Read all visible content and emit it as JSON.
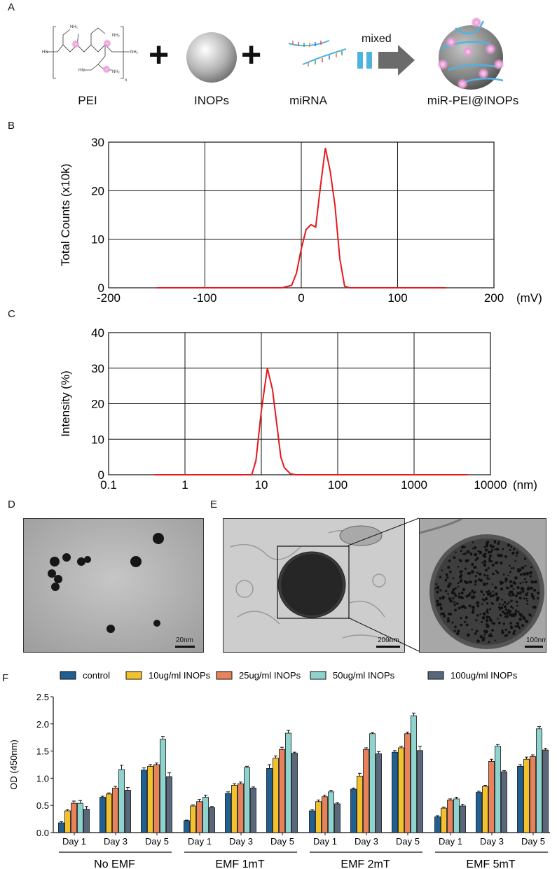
{
  "panel_labels": [
    "A",
    "B",
    "C",
    "D",
    "E",
    "F"
  ],
  "schematic": {
    "labels": [
      "PEI",
      "INOPs",
      "miRNA",
      "miR-PEI@INOPs"
    ],
    "arrow_text": "mixed",
    "plus": "+",
    "colors": {
      "bead": "#e59bd5",
      "strand": "#4fb3e0",
      "arrow": "#6b6b6b",
      "sphere": "#7d7d7d"
    }
  },
  "scale_bars": {
    "d": "20nm",
    "e_left": "200nm",
    "e_right": "100nm"
  },
  "chart_data": [
    {
      "id": "B",
      "type": "line",
      "ylabel": "Total Counts (x10k)",
      "unit": "(mV)",
      "xlim": [
        -200,
        200
      ],
      "ylim": [
        0,
        30
      ],
      "xticks": [
        -200,
        -100,
        0,
        100,
        200
      ],
      "yticks": [
        0,
        10,
        20,
        30
      ],
      "grid": true,
      "color": "#e41a1c",
      "x": [
        -150,
        -20,
        -10,
        -5,
        0,
        5,
        10,
        15,
        20,
        25,
        30,
        35,
        40,
        45,
        50,
        150
      ],
      "y": [
        0,
        0,
        0.5,
        3,
        8,
        12,
        13,
        12.5,
        21,
        28.8,
        24,
        17,
        6,
        0.3,
        0,
        0
      ]
    },
    {
      "id": "C",
      "type": "line",
      "ylabel": "Intensity (%)",
      "unit": "(nm)",
      "xscale": "log",
      "xlim": [
        0.1,
        10000
      ],
      "ylim": [
        0,
        40
      ],
      "xticks": [
        0.1,
        1,
        10,
        100,
        1000,
        10000
      ],
      "ytick_labels": [
        "0.1",
        "1",
        "10",
        "100",
        "1000",
        "10000"
      ],
      "yticks": [
        0,
        10,
        20,
        30,
        40
      ],
      "grid": true,
      "color": "#e41a1c",
      "x": [
        0.4,
        7.5,
        8.5,
        10,
        12,
        14,
        16,
        18,
        20,
        24,
        28,
        5000
      ],
      "y": [
        0,
        0,
        4,
        18,
        30,
        24,
        14,
        5,
        2,
        0.3,
        0,
        0
      ]
    },
    {
      "id": "F",
      "type": "bar",
      "ylabel": "OD (450nm)",
      "ylim": [
        0,
        2.5
      ],
      "yticks": [
        0.0,
        0.5,
        1.0,
        1.5,
        2.0,
        2.5
      ],
      "ytick_labels": [
        "0.0",
        "0.5",
        "1.0",
        "1.5",
        "2.0",
        "2.5"
      ],
      "groups": [
        "No EMF",
        "EMF 1mT",
        "EMF 2mT",
        "EMF 5mT"
      ],
      "days": [
        "Day 1",
        "Day 3",
        "Day 5"
      ],
      "legend_position": "top",
      "series": [
        {
          "name": "control",
          "color": "#1f5f91",
          "values": [
            [
              0.18,
              0.65,
              1.15
            ],
            [
              0.22,
              0.72,
              1.18
            ],
            [
              0.4,
              0.8,
              1.48
            ],
            [
              0.29,
              0.74,
              1.22
            ]
          ],
          "errors": [
            [
              0.02,
              0.02,
              0.04
            ],
            [
              0.01,
              0.03,
              0.07
            ],
            [
              0.02,
              0.02,
              0.03
            ],
            [
              0.02,
              0.02,
              0.03
            ]
          ]
        },
        {
          "name": "10ug/ml INOPs",
          "color": "#f2c12e",
          "values": [
            [
              0.4,
              0.71,
              1.22
            ],
            [
              0.49,
              0.87,
              1.37
            ],
            [
              0.57,
              1.04,
              1.56
            ],
            [
              0.45,
              0.85,
              1.35
            ]
          ],
          "errors": [
            [
              0.02,
              0.02,
              0.03
            ],
            [
              0.02,
              0.03,
              0.04
            ],
            [
              0.03,
              0.05,
              0.03
            ],
            [
              0.02,
              0.02,
              0.04
            ]
          ]
        },
        {
          "name": "25ug/ml INOPs",
          "color": "#e8825a",
          "values": [
            [
              0.54,
              0.82,
              1.25
            ],
            [
              0.57,
              0.9,
              1.53
            ],
            [
              0.66,
              1.53,
              1.82
            ],
            [
              0.6,
              1.31,
              1.4
            ]
          ],
          "errors": [
            [
              0.04,
              0.03,
              0.03
            ],
            [
              0.04,
              0.03,
              0.04
            ],
            [
              0.03,
              0.03,
              0.03
            ],
            [
              0.02,
              0.04,
              0.03
            ]
          ]
        },
        {
          "name": "50ug/ml INOPs",
          "color": "#8fd3cf",
          "values": [
            [
              0.54,
              1.16,
              1.72
            ],
            [
              0.65,
              1.2,
              1.83
            ],
            [
              0.75,
              1.82,
              2.15
            ],
            [
              0.62,
              1.59,
              1.91
            ]
          ],
          "errors": [
            [
              0.05,
              0.08,
              0.05
            ],
            [
              0.04,
              0.02,
              0.05
            ],
            [
              0.03,
              0.02,
              0.05
            ],
            [
              0.03,
              0.03,
              0.04
            ]
          ]
        },
        {
          "name": "100ug/ml INOPs",
          "color": "#58687a",
          "values": [
            [
              0.43,
              0.78,
              1.03
            ],
            [
              0.46,
              0.82,
              1.46
            ],
            [
              0.53,
              1.45,
              1.51
            ],
            [
              0.49,
              1.12,
              1.52
            ]
          ],
          "errors": [
            [
              0.05,
              0.05,
              0.07
            ],
            [
              0.02,
              0.02,
              0.02
            ],
            [
              0.02,
              0.04,
              0.08
            ],
            [
              0.03,
              0.02,
              0.03
            ]
          ]
        }
      ]
    }
  ]
}
